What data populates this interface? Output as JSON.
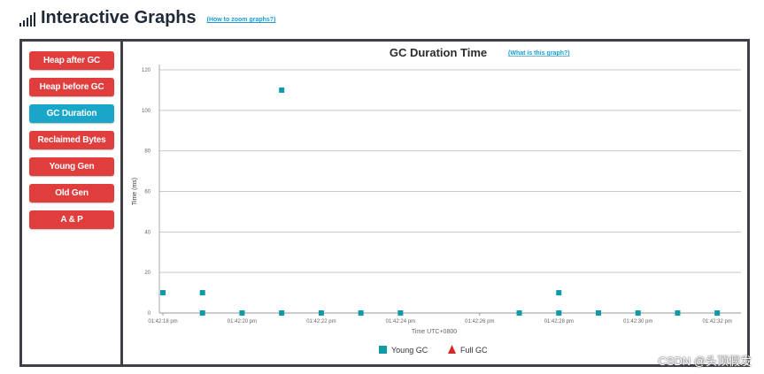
{
  "header": {
    "title": "Interactive Graphs",
    "zoom_link": "(How to zoom graphs?)"
  },
  "sidebar": {
    "items": [
      {
        "label": "Heap after GC",
        "active": false
      },
      {
        "label": "Heap before GC",
        "active": false
      },
      {
        "label": "GC Duration",
        "active": true
      },
      {
        "label": "Reclaimed Bytes",
        "active": false
      },
      {
        "label": "Young Gen",
        "active": false
      },
      {
        "label": "Old Gen",
        "active": false
      },
      {
        "label": "A & P",
        "active": false
      }
    ]
  },
  "chart": {
    "title": "GC Duration Time",
    "help_link": "(What is this graph?)"
  },
  "chart_data": {
    "type": "scatter",
    "title": "GC Duration Time",
    "xlabel": "Time UTC+0800",
    "ylabel": "Time (ms)",
    "ylim": [
      0,
      120
    ],
    "yticks": [
      0,
      20,
      40,
      60,
      80,
      100,
      120
    ],
    "xticks": [
      "01:42:18 pm",
      "01:42:20 pm",
      "01:42:22 pm",
      "01:42:24 pm",
      "01:42:26 pm",
      "01:42:28 pm",
      "01:42:30 pm",
      "01:42:32 pm"
    ],
    "grid": true,
    "legend_position": "bottom",
    "series": [
      {
        "name": "Young GC",
        "color": "#0e9aa7",
        "marker": "square",
        "x": [
          "01:42:18",
          "01:42:19",
          "01:42:19",
          "01:42:20",
          "01:42:21",
          "01:42:21",
          "01:42:22",
          "01:42:23",
          "01:42:24",
          "01:42:27",
          "01:42:28",
          "01:42:28",
          "01:42:29",
          "01:42:30",
          "01:42:31",
          "01:42:32"
        ],
        "y": [
          10,
          10,
          0,
          0,
          110,
          0,
          0,
          0,
          0,
          0,
          10,
          0,
          0,
          0,
          0,
          0
        ]
      },
      {
        "name": "Full GC",
        "color": "#d62728",
        "marker": "triangle",
        "x": [],
        "y": []
      }
    ]
  },
  "watermark": "CSDN @头顶假发"
}
